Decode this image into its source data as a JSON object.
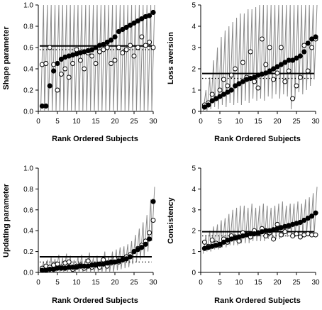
{
  "chart_data": [
    {
      "type": "scatter",
      "ylabel": "Shape parameter",
      "xlabel": "Rank Ordered Subjects",
      "xlim": [
        0,
        30
      ],
      "ylim": [
        0,
        1.0
      ],
      "xticks": [
        0,
        5,
        10,
        15,
        20,
        25,
        30
      ],
      "yticks": [
        0.0,
        0.2,
        0.4,
        0.6,
        0.8,
        1.0
      ],
      "ytick_labels": [
        "0.0",
        "0.2",
        "0.4",
        "0.6",
        "0.8",
        "1.0"
      ],
      "hline": 0.615,
      "dotted_hline": 0.58,
      "series": [
        {
          "values": [
            0.05,
            0.05,
            0.24,
            0.38,
            0.45,
            0.49,
            0.51,
            0.52,
            0.53,
            0.54,
            0.55,
            0.56,
            0.57,
            0.58,
            0.6,
            0.62,
            0.63,
            0.65,
            0.67,
            0.7,
            0.75,
            0.77,
            0.79,
            0.81,
            0.83,
            0.85,
            0.87,
            0.89,
            0.9,
            0.93
          ]
        },
        {
          "values": [
            0.44,
            0.45,
            0.6,
            0.44,
            0.2,
            0.35,
            0.4,
            0.32,
            0.45,
            0.58,
            0.48,
            0.4,
            0.55,
            0.52,
            0.45,
            0.56,
            0.58,
            0.6,
            0.45,
            0.48,
            0.6,
            0.55,
            0.58,
            0.62,
            0.52,
            0.6,
            0.7,
            0.62,
            0.65,
            0.6
          ]
        }
      ],
      "whisker_low": [
        0.0,
        0.0,
        0.0,
        0.0,
        0.0,
        0.0,
        0.0,
        0.0,
        0.0,
        0.0,
        0.0,
        0.0,
        0.0,
        0.0,
        0.0,
        0.0,
        0.0,
        0.0,
        0.0,
        0.0,
        0.0,
        0.0,
        0.0,
        0.0,
        0.0,
        0.0,
        0.0,
        0.0,
        0.0,
        0.0
      ],
      "whisker_high": [
        1.0,
        1.0,
        1.0,
        1.0,
        1.0,
        1.0,
        1.0,
        1.0,
        1.0,
        1.0,
        1.0,
        1.0,
        1.0,
        1.0,
        1.0,
        1.0,
        1.0,
        1.0,
        1.0,
        1.0,
        1.0,
        1.0,
        1.0,
        1.0,
        1.0,
        1.0,
        1.0,
        1.0,
        1.0,
        1.0
      ],
      "grid": false
    },
    {
      "type": "scatter",
      "ylabel": "Loss aversion",
      "xlabel": "Rank Ordered Subjects",
      "xlim": [
        0,
        30
      ],
      "ylim": [
        0,
        5
      ],
      "xticks": [
        0,
        5,
        10,
        15,
        20,
        25,
        30
      ],
      "yticks": [
        0,
        1,
        2,
        3,
        4,
        5
      ],
      "ytick_labels": [
        "0",
        "1",
        "2",
        "3",
        "4",
        "5"
      ],
      "hline": 1.78,
      "dotted_hline": 1.55,
      "series": [
        {
          "values": [
            0.2,
            0.3,
            0.5,
            0.6,
            0.7,
            0.8,
            0.9,
            1.0,
            1.2,
            1.3,
            1.4,
            1.5,
            1.55,
            1.6,
            1.7,
            1.75,
            1.8,
            1.9,
            2.0,
            2.1,
            2.2,
            2.3,
            2.4,
            2.4,
            2.5,
            2.6,
            2.8,
            3.2,
            3.4,
            3.5
          ]
        },
        {
          "values": [
            0.3,
            0.4,
            0.8,
            0.6,
            1.0,
            1.5,
            1.2,
            1.7,
            2.0,
            1.3,
            2.3,
            1.6,
            2.8,
            1.4,
            1.1,
            3.4,
            2.2,
            3.0,
            1.5,
            1.8,
            3.0,
            1.4,
            1.9,
            0.6,
            1.2,
            1.6,
            3.1,
            1.9,
            3.0,
            3.4
          ]
        }
      ],
      "whisker_low": [
        0.0,
        0.0,
        0.1,
        0.2,
        0.1,
        0.3,
        0.2,
        0.4,
        0.3,
        0.4,
        0.3,
        0.5,
        0.4,
        0.6,
        0.5,
        0.6,
        0.5,
        0.7,
        0.6,
        0.8,
        0.6,
        0.8,
        0.7,
        0.1,
        0.6,
        0.9,
        0.8,
        1.0,
        1.2,
        1.5
      ],
      "whisker_high": [
        1.0,
        1.6,
        2.4,
        3.0,
        3.5,
        3.8,
        4.0,
        4.2,
        4.4,
        4.6,
        4.6,
        4.8,
        4.8,
        4.9,
        5.0,
        5.0,
        5.0,
        5.0,
        5.0,
        5.0,
        5.0,
        5.0,
        5.0,
        5.0,
        5.0,
        5.0,
        5.0,
        5.0,
        5.0,
        5.0
      ],
      "grid": false
    },
    {
      "type": "scatter",
      "ylabel": "Updating parameter",
      "xlabel": "Rank Ordered Subjects",
      "xlim": [
        0,
        30
      ],
      "ylim": [
        0,
        1.0
      ],
      "xticks": [
        0,
        5,
        10,
        15,
        20,
        25,
        30
      ],
      "yticks": [
        0.0,
        0.2,
        0.4,
        0.6,
        0.8,
        1.0
      ],
      "ytick_labels": [
        "0.0",
        "0.2",
        "0.4",
        "0.6",
        "0.8",
        "1.0"
      ],
      "hline": 0.15,
      "dotted_hline": 0.1,
      "series": [
        {
          "values": [
            0.02,
            0.02,
            0.03,
            0.03,
            0.04,
            0.04,
            0.04,
            0.05,
            0.05,
            0.05,
            0.06,
            0.06,
            0.06,
            0.07,
            0.07,
            0.08,
            0.08,
            0.09,
            0.1,
            0.1,
            0.11,
            0.12,
            0.13,
            0.15,
            0.2,
            0.22,
            0.24,
            0.27,
            0.32,
            0.68
          ]
        },
        {
          "values": [
            0.04,
            0.06,
            0.05,
            0.07,
            0.08,
            0.05,
            0.09,
            0.1,
            0.03,
            0.06,
            0.07,
            0.04,
            0.11,
            0.05,
            0.08,
            0.05,
            0.12,
            0.06,
            0.09,
            0.13,
            0.1,
            0.12,
            0.15,
            0.17,
            0.2,
            0.23,
            0.26,
            0.3,
            0.38,
            0.5
          ]
        }
      ],
      "whisker_low": [
        0.0,
        0.0,
        0.0,
        0.0,
        0.0,
        0.0,
        0.0,
        0.0,
        0.0,
        0.0,
        0.0,
        0.0,
        0.0,
        0.0,
        0.0,
        0.0,
        0.0,
        0.0,
        0.0,
        0.0,
        0.02,
        0.03,
        0.04,
        0.05,
        0.08,
        0.1,
        0.12,
        0.15,
        0.2,
        0.3
      ],
      "whisker_high": [
        0.1,
        0.12,
        0.15,
        0.13,
        0.17,
        0.14,
        0.18,
        0.16,
        0.12,
        0.15,
        0.17,
        0.13,
        0.19,
        0.14,
        0.16,
        0.12,
        0.2,
        0.15,
        0.2,
        0.22,
        0.24,
        0.25,
        0.27,
        0.3,
        0.36,
        0.42,
        0.48,
        0.55,
        0.7,
        0.82
      ],
      "grid": false
    },
    {
      "type": "scatter",
      "ylabel": "Consistency",
      "xlabel": "Rank Ordered Subjects",
      "xlim": [
        0,
        30
      ],
      "ylim": [
        0,
        5
      ],
      "xticks": [
        0,
        5,
        10,
        15,
        20,
        25,
        30
      ],
      "yticks": [
        0,
        1,
        2,
        3,
        4,
        5
      ],
      "ytick_labels": [
        "0",
        "1",
        "2",
        "3",
        "4",
        "5"
      ],
      "hline": 1.95,
      "dotted_hline": 1.75,
      "series": [
        {
          "values": [
            1.15,
            1.2,
            1.25,
            1.3,
            1.35,
            1.45,
            1.55,
            1.6,
            1.65,
            1.7,
            1.75,
            1.8,
            1.85,
            1.85,
            1.9,
            1.95,
            2.0,
            2.0,
            2.05,
            2.1,
            2.15,
            2.2,
            2.25,
            2.3,
            2.35,
            2.4,
            2.5,
            2.6,
            2.7,
            2.85
          ]
        },
        {
          "values": [
            1.45,
            1.25,
            1.55,
            1.4,
            1.3,
            1.6,
            1.45,
            1.75,
            1.7,
            1.5,
            1.9,
            1.8,
            1.7,
            2.0,
            1.85,
            2.1,
            1.75,
            1.9,
            1.6,
            2.3,
            1.8,
            1.95,
            2.2,
            1.75,
            1.85,
            1.7,
            1.8,
            1.85,
            1.8,
            1.8
          ]
        }
      ],
      "whisker_low": [
        0.9,
        1.0,
        1.0,
        1.1,
        1.1,
        1.2,
        1.2,
        1.3,
        1.3,
        1.3,
        1.4,
        1.4,
        1.4,
        1.5,
        1.5,
        1.5,
        1.5,
        1.6,
        1.6,
        1.6,
        1.6,
        1.7,
        1.7,
        1.7,
        1.7,
        1.7,
        1.8,
        1.8,
        1.8,
        1.8
      ],
      "whisker_high": [
        1.8,
        2.0,
        2.2,
        2.3,
        2.5,
        2.6,
        2.8,
        3.0,
        3.1,
        3.2,
        3.2,
        3.1,
        3.3,
        3.1,
        3.2,
        3.3,
        3.2,
        3.1,
        3.2,
        3.3,
        3.4,
        3.2,
        3.3,
        3.3,
        3.4,
        3.3,
        3.5,
        3.6,
        3.8,
        4.1
      ],
      "grid": false
    }
  ],
  "colors": {
    "filled_marker": "#000000",
    "open_marker_fill": "#ffffff",
    "whisker": "#8a8a8a",
    "reference_line": "#000000"
  }
}
